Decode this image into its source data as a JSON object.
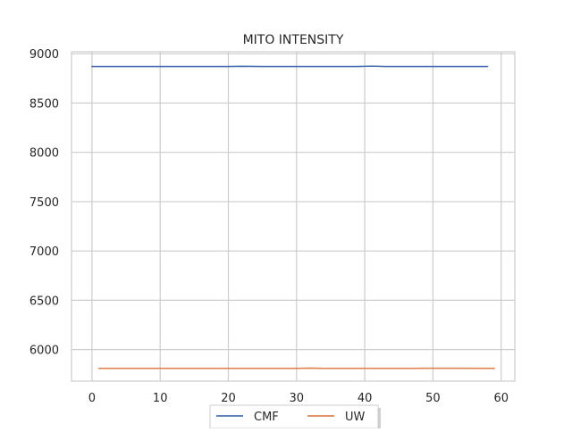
{
  "chart_data": {
    "type": "line",
    "title": "MITO INTENSITY",
    "xlabel": "",
    "ylabel": "",
    "xlim": [
      -3,
      62
    ],
    "ylim": [
      5680,
      9020
    ],
    "x_ticks": [
      0,
      10,
      20,
      30,
      40,
      50,
      60
    ],
    "y_ticks": [
      6000,
      6500,
      7000,
      7500,
      8000,
      8500,
      9000
    ],
    "grid": true,
    "legend": {
      "position": "bottom-center"
    },
    "series": [
      {
        "name": "CMF",
        "color": "#4c72b0",
        "x": [
          0,
          10,
          20,
          22,
          25,
          30,
          35,
          39,
          41,
          43,
          50,
          58
        ],
        "y": [
          8870,
          8870,
          8870,
          8872,
          8870,
          8870,
          8870,
          8870,
          8874,
          8870,
          8870,
          8870
        ]
      },
      {
        "name": "UW",
        "color": "#dd8452",
        "x": [
          1,
          10,
          20,
          30,
          32,
          34,
          40,
          47,
          49,
          59
        ],
        "y": [
          5810,
          5810,
          5810,
          5810,
          5812,
          5810,
          5810,
          5810,
          5811,
          5810
        ]
      }
    ]
  }
}
